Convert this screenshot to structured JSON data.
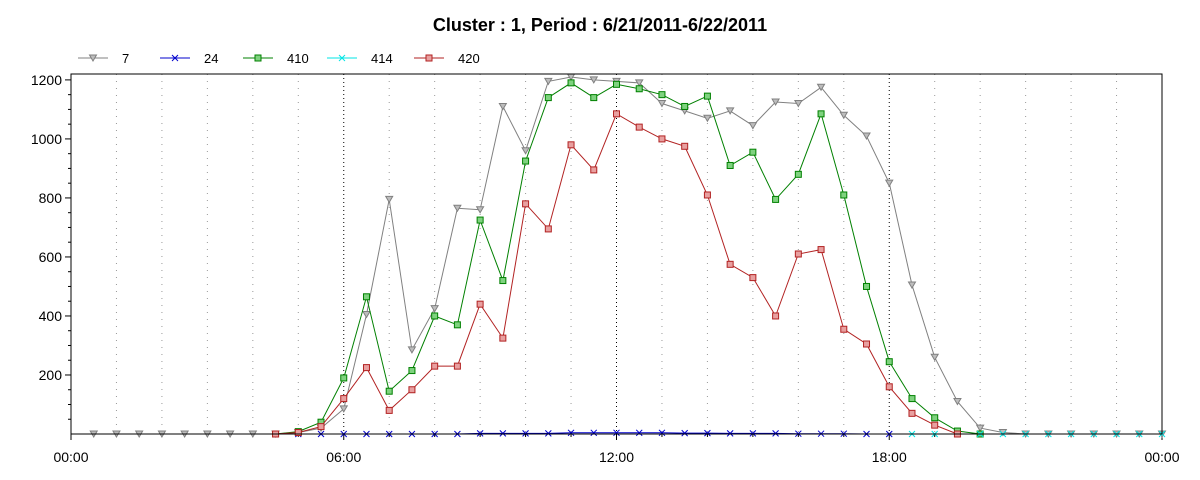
{
  "chart_data": {
    "type": "line",
    "title": "Cluster : 1, Period : 6/21/2011-6/22/2011",
    "xlabel": "",
    "ylabel": "",
    "x_unit": "hours since 00:00",
    "xlim": [
      0,
      24
    ],
    "ylim": [
      0,
      1220
    ],
    "x_ticks": [
      {
        "value": 0,
        "label": "00:00"
      },
      {
        "value": 6,
        "label": "06:00"
      },
      {
        "value": 12,
        "label": "12:00"
      },
      {
        "value": 18,
        "label": "18:00"
      },
      {
        "value": 24,
        "label": "00:00"
      }
    ],
    "y_ticks": [
      {
        "value": 200,
        "label": "200"
      },
      {
        "value": 400,
        "label": "400"
      },
      {
        "value": 600,
        "label": "600"
      },
      {
        "value": 800,
        "label": "800"
      },
      {
        "value": 1000,
        "label": "1000"
      },
      {
        "value": 1200,
        "label": "1200"
      }
    ],
    "grid": true,
    "legend_position": "top-left",
    "series": [
      {
        "name": "7",
        "color": "#808080",
        "marker": "triangle-down",
        "x": [
          0.5,
          1,
          1.5,
          2,
          2.5,
          3,
          3.5,
          4,
          4.5,
          5,
          5.5,
          6,
          6.5,
          7,
          7.5,
          8,
          8.5,
          9,
          9.5,
          10,
          10.5,
          11,
          11.5,
          12,
          12.5,
          13,
          13.5,
          14,
          14.5,
          15,
          15.5,
          16,
          16.5,
          17,
          17.5,
          18,
          18.5,
          19,
          19.5,
          20,
          20.5,
          21,
          21.5,
          22,
          22.5,
          23,
          23.5,
          24
        ],
        "values": [
          0,
          0,
          0,
          0,
          0,
          0,
          0,
          0,
          0,
          5,
          20,
          85,
          405,
          795,
          285,
          425,
          765,
          760,
          1110,
          960,
          1195,
          1210,
          1200,
          1195,
          1190,
          1120,
          1095,
          1070,
          1095,
          1045,
          1125,
          1120,
          1175,
          1080,
          1010,
          850,
          505,
          260,
          110,
          20,
          5,
          0,
          0,
          0,
          0,
          0,
          0,
          0
        ]
      },
      {
        "name": "24",
        "color": "#0000cc",
        "marker": "x",
        "x": [
          4.5,
          5,
          5.5,
          6,
          6.5,
          7,
          7.5,
          8,
          8.5,
          9,
          9.5,
          10,
          10.5,
          11,
          11.5,
          12,
          12.5,
          13,
          13.5,
          14,
          14.5,
          15,
          15.5,
          16,
          16.5,
          17,
          17.5,
          18
        ],
        "values": [
          0,
          0,
          0,
          0,
          0,
          0,
          0,
          0,
          0,
          2,
          2,
          2,
          2,
          4,
          4,
          4,
          4,
          4,
          3,
          3,
          2,
          2,
          2,
          1,
          1,
          1,
          0,
          0
        ]
      },
      {
        "name": "410",
        "color": "#008000",
        "marker": "square",
        "x": [
          4.5,
          5,
          5.5,
          6,
          6.5,
          7,
          7.5,
          8,
          8.5,
          9,
          9.5,
          10,
          10.5,
          11,
          11.5,
          12,
          12.5,
          13,
          13.5,
          14,
          14.5,
          15,
          15.5,
          16,
          16.5,
          17,
          17.5,
          18,
          18.5,
          19,
          19.5,
          20
        ],
        "values": [
          0,
          8,
          40,
          190,
          465,
          145,
          215,
          400,
          370,
          725,
          520,
          925,
          1140,
          1190,
          1140,
          1185,
          1170,
          1150,
          1110,
          1145,
          910,
          955,
          795,
          880,
          1085,
          810,
          500,
          245,
          120,
          55,
          10,
          0
        ]
      },
      {
        "name": "414",
        "color": "#00e5e5",
        "marker": "x",
        "x": [
          18.5,
          19,
          19.5,
          20,
          20.5,
          21,
          21.5,
          22,
          22.5,
          23,
          23.5,
          24
        ],
        "values": [
          0,
          0,
          0,
          0,
          0,
          0,
          0,
          0,
          0,
          0,
          0,
          0
        ]
      },
      {
        "name": "420",
        "color": "#b22222",
        "marker": "square",
        "x": [
          4.5,
          5,
          5.5,
          6,
          6.5,
          7,
          7.5,
          8,
          8.5,
          9,
          9.5,
          10,
          10.5,
          11,
          11.5,
          12,
          12.5,
          13,
          13.5,
          14,
          14.5,
          15,
          15.5,
          16,
          16.5,
          17,
          17.5,
          18,
          18.5,
          19,
          19.5
        ],
        "values": [
          0,
          5,
          25,
          120,
          225,
          80,
          150,
          230,
          230,
          440,
          325,
          780,
          695,
          980,
          895,
          1085,
          1040,
          1000,
          975,
          810,
          575,
          530,
          400,
          610,
          625,
          355,
          305,
          160,
          70,
          30,
          0
        ]
      }
    ]
  }
}
